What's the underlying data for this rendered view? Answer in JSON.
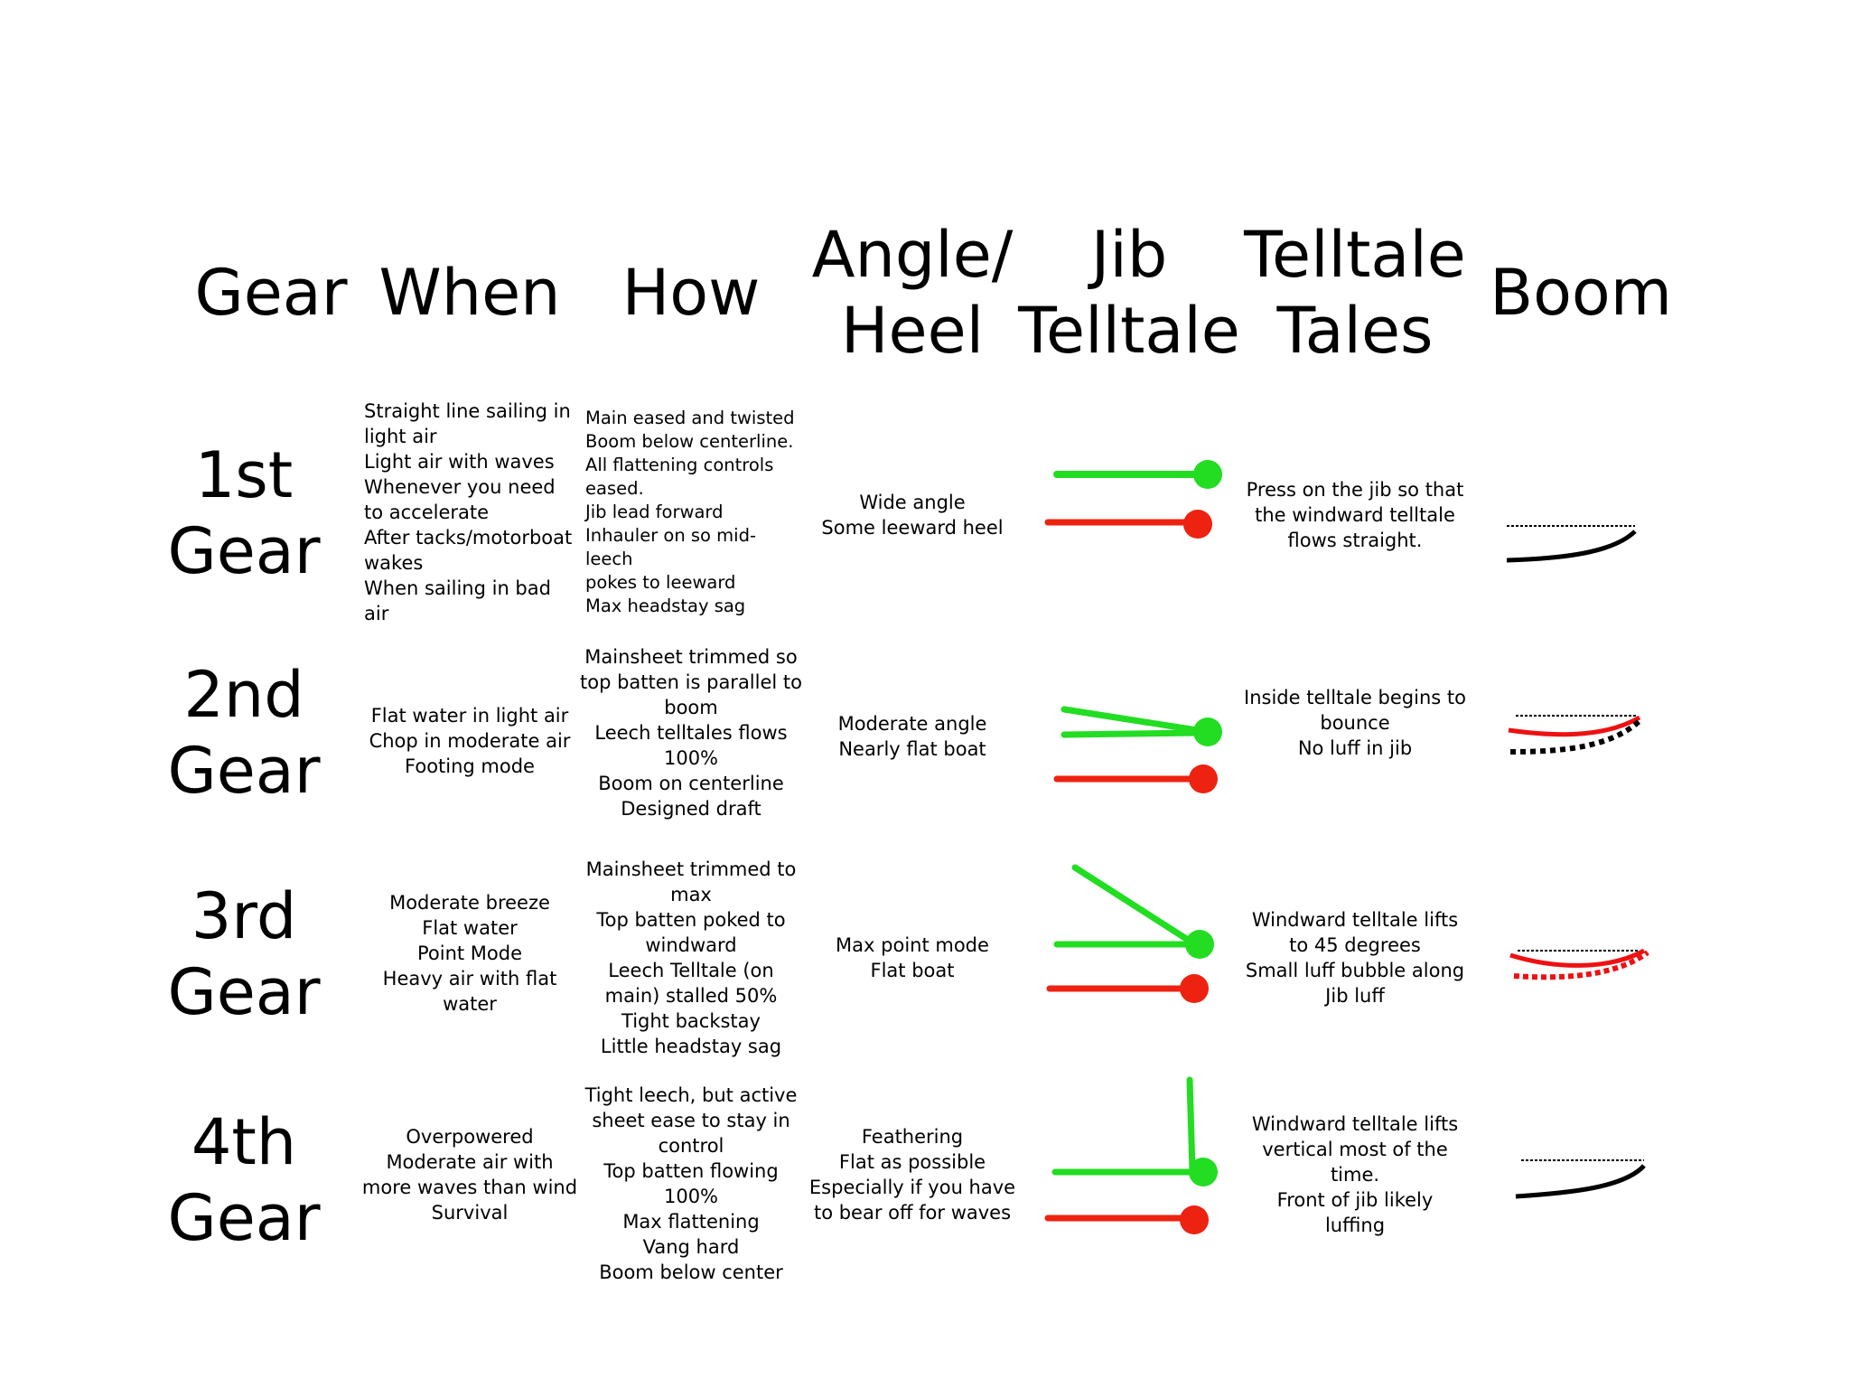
{
  "headers": {
    "gear": "Gear",
    "when": "When",
    "how": "How",
    "angle": "Angle/\nHeel",
    "jib": "Jib\nTelltale",
    "tales": "Telltale\nTales",
    "boom": "Boom"
  },
  "rows": [
    {
      "gear": "1st\nGear",
      "when": [
        "Straight line sailing in",
        "light air",
        "Light air with waves",
        "Whenever you need",
        "to accelerate",
        "After tacks/motorboat",
        "wakes",
        "When sailing in bad air"
      ],
      "how": [
        "Main eased and twisted",
        "Boom below centerline.",
        "All flattening controls",
        "eased.",
        "Jib lead forward",
        "Inhauler on so mid-leech",
        "pokes to leeward",
        "Max headstay sag"
      ],
      "angle": [
        "Wide angle",
        "Some leeward heel"
      ],
      "tales": [
        "Press on the jib so that",
        "the windward telltale",
        "flows straight."
      ]
    },
    {
      "gear": "2nd\nGear",
      "when": [
        "Flat water in light air",
        "Chop in moderate air",
        "Footing mode"
      ],
      "how": [
        "Mainsheet trimmed so",
        "top batten is parallel to",
        "boom",
        "Leech telltales flows",
        "100%",
        "Boom on centerline",
        "Designed draft"
      ],
      "angle": [
        "Moderate angle",
        "Nearly flat boat"
      ],
      "tales": [
        "Inside telltale begins to",
        "bounce",
        "No luff in jib"
      ]
    },
    {
      "gear": "3rd\nGear",
      "when": [
        "Moderate breeze",
        "Flat water",
        "Point Mode",
        "Heavy air with flat",
        "water"
      ],
      "how": [
        "Mainsheet trimmed to",
        "max",
        "Top batten poked to",
        "windward",
        "Leech Telltale (on",
        "main) stalled 50%",
        "Tight backstay",
        "Little headstay sag"
      ],
      "angle": [
        "Max point mode",
        "Flat boat"
      ],
      "tales": [
        "Windward telltale lifts",
        "to 45 degrees",
        "Small luff bubble along",
        "Jib luff"
      ]
    },
    {
      "gear": "4th\nGear",
      "when": [
        "Overpowered",
        "Moderate air with",
        "more waves than wind",
        "Survival"
      ],
      "how": [
        "Tight leech, but active",
        "sheet ease to stay in",
        "control",
        "Top batten flowing",
        "100%",
        "Max flattening",
        "Vang hard",
        "Boom below center"
      ],
      "angle": [
        "Feathering",
        "Flat as possible",
        "Especially if you have",
        "to bear off for waves"
      ],
      "tales": [
        "Windward telltale lifts",
        "vertical most of the",
        "time.",
        "Front of jib likely",
        "luffing"
      ]
    }
  ],
  "icons": {
    "jib": "jib-telltale-icon",
    "boom": "boom-curve-icon"
  },
  "colors": {
    "windward_telltale": "#22dd22",
    "leeward_telltale": "#ee2211",
    "boom_line": "#000000",
    "sail_line": "#ee1111"
  }
}
